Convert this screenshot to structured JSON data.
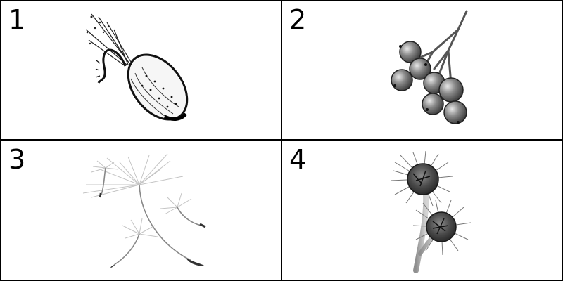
{
  "panels": [
    {
      "number": "1",
      "subject": "seed-icon"
    },
    {
      "number": "2",
      "subject": "berry-cluster-icon"
    },
    {
      "number": "3",
      "subject": "dandelion-seed-icon"
    },
    {
      "number": "4",
      "subject": "burdock-burr-icon"
    }
  ],
  "colors": {
    "border": "#000000",
    "ink": "#1a1a1a",
    "berry_dark": "#3d3d3d",
    "berry_mid": "#8a8a8a",
    "berry_light": "#d6d6d6",
    "fluff": "#b8b8b8"
  }
}
